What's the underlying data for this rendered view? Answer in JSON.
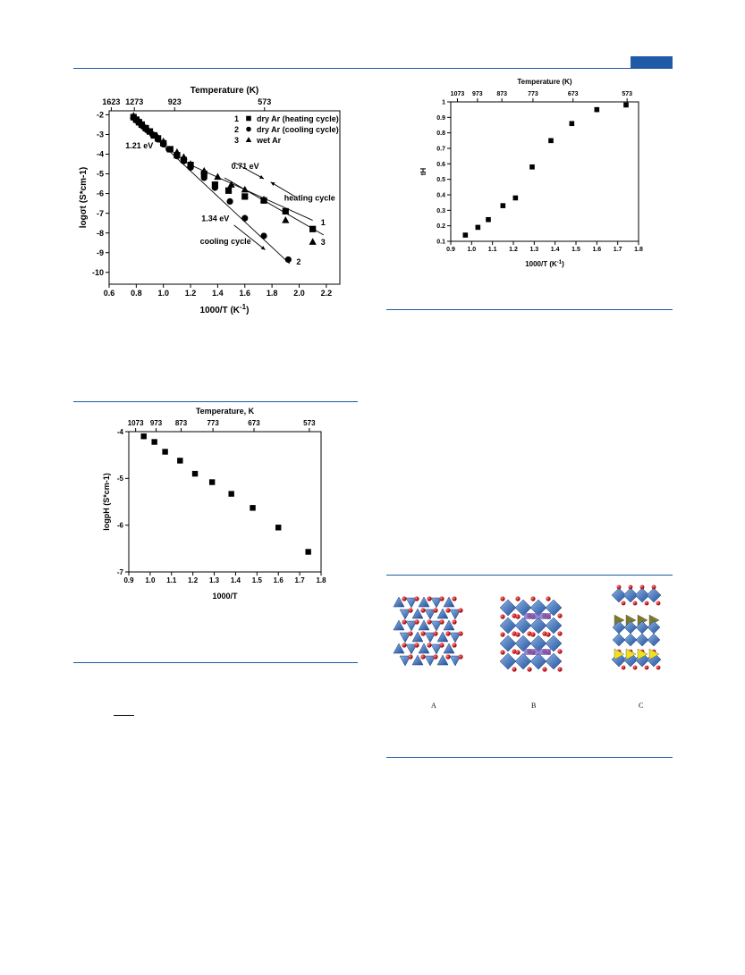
{
  "header": {
    "accent_color": "#1f5aa6"
  },
  "structure_figure": {
    "labels": [
      "A",
      "B",
      "C"
    ]
  },
  "chart_data": [
    {
      "type": "scatter",
      "xlabel": "1000/T (K",
      "xlabel_sup": "-1",
      "xlabel_suffix": ")",
      "ylabel": "logσt (S*cm-1)",
      "top_axis_label": "Temperature (K)",
      "top_ticks": [
        "1623",
        "1273",
        "923",
        "573"
      ],
      "top_tick_x": [
        0.616,
        0.786,
        1.083,
        1.745
      ],
      "xlim": [
        0.6,
        2.3
      ],
      "ylim": [
        -10.6,
        -1.8
      ],
      "xticks": [
        0.6,
        0.8,
        1.0,
        1.2,
        1.4,
        1.6,
        1.8,
        2.0,
        2.2
      ],
      "yticks": [
        -2,
        -3,
        -4,
        -5,
        -6,
        -7,
        -8,
        -9,
        -10
      ],
      "legend_position": "top-right",
      "legend": [
        {
          "num": "1",
          "marker": "square",
          "label": "dry Ar (heating cycle)"
        },
        {
          "num": "2",
          "marker": "circle",
          "label": "dry Ar (cooling cycle)"
        },
        {
          "num": "3",
          "marker": "triangle",
          "label": "wet Ar"
        }
      ],
      "annotations": [
        {
          "text": "1.21 eV",
          "x": 0.72,
          "y": -3.7
        },
        {
          "text": "0.71 eV",
          "x": 1.5,
          "y": -4.75
        },
        {
          "text": "1.34 eV",
          "x": 1.28,
          "y": -7.4
        },
        {
          "text": "cooling cycle",
          "x": 1.27,
          "y": -8.55
        },
        {
          "text": "heating cycle",
          "x": 1.89,
          "y": -6.35
        },
        {
          "text": "1",
          "x": 2.16,
          "y": -7.6
        },
        {
          "text": "2",
          "x": 1.98,
          "y": -9.6
        },
        {
          "text": "3",
          "x": 2.16,
          "y": -8.6
        }
      ],
      "fit_lines": [
        {
          "x": [
            0.76,
            1.93
          ],
          "y": [
            -2.02,
            -9.56
          ]
        },
        {
          "x": [
            1.2,
            2.1
          ],
          "y": [
            -4.55,
            -7.36
          ]
        },
        {
          "x": [
            1.45,
            2.18
          ],
          "y": [
            -5.2,
            -8.1
          ]
        }
      ],
      "arrows": [
        {
          "from": [
            1.52,
            -4.42
          ],
          "to": [
            1.74,
            -5.25
          ]
        },
        {
          "from": [
            1.97,
            -6.15
          ],
          "to": [
            1.79,
            -5.42
          ]
        },
        {
          "from": [
            1.52,
            -7.6
          ],
          "to": [
            1.75,
            -8.86
          ]
        }
      ],
      "series": [
        {
          "name": "dry Ar (heating cycle)",
          "marker": "square",
          "x": [
            0.78,
            0.8,
            0.82,
            0.84,
            0.87,
            0.9,
            0.93,
            0.96,
            1.0,
            1.05,
            1.1,
            1.15,
            1.2,
            1.3,
            1.38,
            1.48,
            1.6,
            1.74,
            1.9,
            2.1
          ],
          "y": [
            -2.12,
            -2.25,
            -2.38,
            -2.5,
            -2.68,
            -2.85,
            -3.05,
            -3.2,
            -3.45,
            -3.75,
            -4.05,
            -4.3,
            -4.55,
            -5.0,
            -5.55,
            -5.85,
            -6.15,
            -6.35,
            -6.9,
            -7.8
          ]
        },
        {
          "name": "dry Ar (cooling cycle)",
          "marker": "circle",
          "x": [
            0.78,
            0.8,
            0.82,
            0.85,
            0.88,
            0.92,
            0.96,
            1.0,
            1.04,
            1.1,
            1.15,
            1.2,
            1.3,
            1.38,
            1.49,
            1.6,
            1.74,
            1.92
          ],
          "y": [
            -2.15,
            -2.28,
            -2.4,
            -2.6,
            -2.78,
            -3.0,
            -3.25,
            -3.5,
            -3.75,
            -4.1,
            -4.35,
            -4.68,
            -5.2,
            -5.7,
            -6.4,
            -7.25,
            -8.15,
            -9.35
          ]
        },
        {
          "name": "wet Ar",
          "marker": "triangle",
          "x": [
            0.78,
            0.82,
            0.88,
            0.95,
            1.0,
            1.1,
            1.15,
            1.2,
            1.3,
            1.4,
            1.5,
            1.6,
            1.74,
            1.9,
            2.1
          ],
          "y": [
            -2.05,
            -2.3,
            -2.7,
            -3.05,
            -3.35,
            -3.9,
            -4.15,
            -4.5,
            -4.85,
            -5.15,
            -5.55,
            -5.8,
            -6.3,
            -7.35,
            -8.45
          ]
        }
      ]
    },
    {
      "type": "scatter",
      "xlabel": "1000/T",
      "ylabel": "logpH (S*cm-1)",
      "top_axis_label": "Temperature, K",
      "top_ticks": [
        "1073",
        "973",
        "873",
        "773",
        "673",
        "573"
      ],
      "top_tick_x": [
        0.932,
        1.028,
        1.145,
        1.294,
        1.486,
        1.745
      ],
      "xlim": [
        0.9,
        1.8
      ],
      "ylim": [
        -7,
        -4
      ],
      "xticks": [
        0.9,
        1.0,
        1.1,
        1.2,
        1.3,
        1.4,
        1.5,
        1.6,
        1.7,
        1.8
      ],
      "yticks": [
        -4,
        -5,
        -6,
        -7
      ],
      "series": [
        {
          "marker": "square",
          "x": [
            0.97,
            1.02,
            1.07,
            1.14,
            1.21,
            1.29,
            1.38,
            1.48,
            1.6,
            1.74
          ],
          "y": [
            -4.1,
            -4.22,
            -4.43,
            -4.62,
            -4.9,
            -5.08,
            -5.33,
            -5.63,
            -6.05,
            -6.57
          ]
        }
      ]
    },
    {
      "type": "scatter",
      "xlabel": "1000/T (K",
      "xlabel_sup": "-1",
      "xlabel_suffix": ")",
      "ylabel": "tH",
      "top_axis_label": "Temperature (K)",
      "top_ticks": [
        "1073",
        "973",
        "873",
        "773",
        "673",
        "573"
      ],
      "top_tick_x": [
        0.932,
        1.028,
        1.145,
        1.294,
        1.486,
        1.745
      ],
      "xlim": [
        0.9,
        1.8
      ],
      "ylim": [
        0.1,
        1.0
      ],
      "xticks": [
        0.9,
        1.0,
        1.1,
        1.2,
        1.3,
        1.4,
        1.5,
        1.6,
        1.7,
        1.8
      ],
      "yticks": [
        0.1,
        0.2,
        0.3,
        0.4,
        0.5,
        0.6,
        0.7,
        0.8,
        0.9,
        1.0
      ],
      "series": [
        {
          "marker": "square",
          "x": [
            0.97,
            1.03,
            1.08,
            1.15,
            1.21,
            1.29,
            1.38,
            1.48,
            1.6,
            1.74
          ],
          "y": [
            0.14,
            0.19,
            0.24,
            0.33,
            0.38,
            0.58,
            0.75,
            0.86,
            0.95,
            0.98
          ]
        }
      ]
    }
  ]
}
